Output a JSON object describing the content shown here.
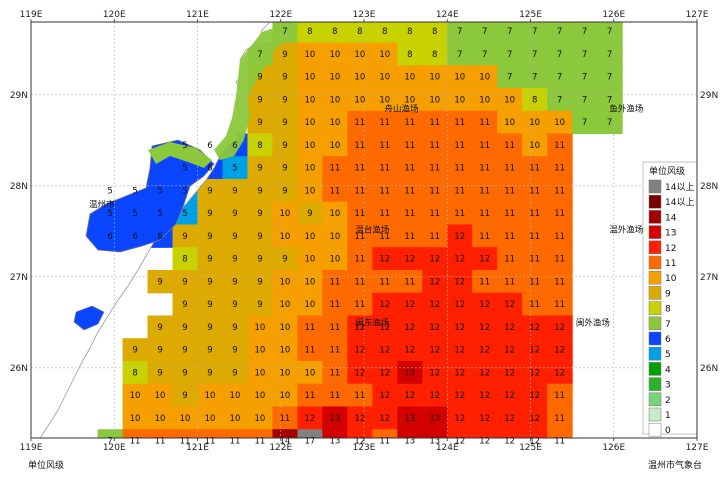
{
  "map": {
    "lon_ticks": [
      "119E",
      "120E",
      "121E",
      "122E",
      "123E",
      "124E",
      "125E",
      "126E",
      "127E"
    ],
    "lat_ticks": [
      "29N",
      "28N",
      "27N",
      "26N"
    ],
    "city": "温州市",
    "fishing_grounds": [
      {
        "name": "舟山渔场",
        "lon": 123.45,
        "lat": 28.85
      },
      {
        "name": "鱼外渔场",
        "lon": 126.15,
        "lat": 28.85
      },
      {
        "name": "温台渔场",
        "lon": 123.1,
        "lat": 27.52
      },
      {
        "name": "温外渔场",
        "lon": 126.15,
        "lat": 27.52
      },
      {
        "name": "闽东渔场",
        "lon": 123.1,
        "lat": 26.5
      },
      {
        "name": "闽外渔场",
        "lon": 125.75,
        "lat": 26.5
      }
    ],
    "wind_grid": {
      "lon_start": 119.65,
      "lon_step": 0.3,
      "lat_start": 29.7,
      "lat_step": -0.25,
      "rows": [
        [
          null,
          null,
          null,
          null,
          null,
          null,
          null,
          null,
          7,
          8,
          8,
          8,
          8,
          8,
          8,
          7,
          7,
          7,
          7,
          7,
          7,
          7
        ],
        [
          null,
          null,
          null,
          null,
          null,
          null,
          null,
          7,
          9,
          10,
          10,
          10,
          10,
          8,
          8,
          7,
          7,
          7,
          7,
          7,
          7,
          7
        ],
        [
          null,
          null,
          null,
          null,
          null,
          null,
          null,
          9,
          9,
          10,
          10,
          10,
          10,
          10,
          10,
          10,
          10,
          7,
          7,
          7,
          7,
          7
        ],
        [
          null,
          null,
          null,
          null,
          null,
          null,
          null,
          9,
          9,
          10,
          10,
          10,
          10,
          10,
          10,
          10,
          10,
          10,
          8,
          7,
          7,
          7
        ],
        [
          null,
          null,
          null,
          null,
          null,
          null,
          null,
          9,
          9,
          10,
          10,
          11,
          11,
          11,
          11,
          11,
          11,
          10,
          10,
          10,
          7,
          7
        ],
        [
          null,
          null,
          null,
          null,
          5,
          6,
          6,
          8,
          9,
          10,
          10,
          11,
          11,
          11,
          11,
          11,
          11,
          11,
          10,
          11,
          null,
          null
        ],
        [
          null,
          null,
          null,
          null,
          5,
          6,
          5,
          9,
          9,
          10,
          11,
          11,
          11,
          11,
          11,
          11,
          11,
          11,
          11,
          11,
          null,
          null
        ],
        [
          null,
          5,
          5,
          5,
          5,
          9,
          9,
          9,
          9,
          10,
          11,
          11,
          11,
          11,
          11,
          11,
          11,
          11,
          11,
          11,
          null,
          null
        ],
        [
          null,
          5,
          5,
          5,
          5,
          9,
          9,
          9,
          10,
          9,
          10,
          11,
          11,
          11,
          11,
          11,
          11,
          11,
          11,
          11,
          null,
          null
        ],
        [
          null,
          6,
          6,
          6,
          9,
          9,
          9,
          9,
          10,
          10,
          10,
          11,
          11,
          11,
          11,
          12,
          11,
          11,
          11,
          11,
          null,
          null
        ],
        [
          null,
          null,
          null,
          null,
          8,
          9,
          9,
          9,
          9,
          10,
          10,
          11,
          12,
          12,
          12,
          12,
          12,
          11,
          11,
          11,
          null,
          null
        ],
        [
          null,
          null,
          null,
          9,
          9,
          9,
          9,
          9,
          10,
          10,
          11,
          11,
          11,
          11,
          12,
          12,
          11,
          11,
          11,
          11,
          null,
          null
        ],
        [
          null,
          null,
          null,
          null,
          9,
          9,
          9,
          9,
          10,
          10,
          11,
          11,
          12,
          12,
          12,
          12,
          12,
          12,
          11,
          11,
          null,
          null
        ],
        [
          null,
          null,
          null,
          9,
          9,
          9,
          9,
          10,
          10,
          11,
          11,
          12,
          12,
          12,
          12,
          12,
          12,
          12,
          12,
          12,
          null,
          null
        ],
        [
          null,
          null,
          9,
          9,
          9,
          9,
          9,
          10,
          10,
          11,
          11,
          12,
          12,
          12,
          12,
          12,
          12,
          12,
          12,
          12,
          null,
          null
        ],
        [
          null,
          null,
          8,
          9,
          9,
          9,
          9,
          10,
          10,
          10,
          11,
          12,
          12,
          13,
          12,
          12,
          12,
          12,
          12,
          12,
          null,
          null
        ],
        [
          null,
          null,
          10,
          10,
          9,
          10,
          10,
          10,
          10,
          11,
          11,
          11,
          12,
          12,
          12,
          12,
          12,
          12,
          12,
          11,
          null,
          null
        ],
        [
          null,
          null,
          10,
          10,
          10,
          10,
          10,
          10,
          11,
          12,
          13,
          12,
          12,
          13,
          13,
          12,
          12,
          12,
          12,
          11,
          null,
          null
        ],
        [
          null,
          7,
          11,
          11,
          11,
          11,
          11,
          11,
          14,
          17,
          13,
          12,
          11,
          13,
          13,
          12,
          12,
          12,
          12,
          11,
          null,
          null
        ]
      ]
    }
  },
  "legend": {
    "title": "单位风级",
    "items": [
      {
        "label": "14以上",
        "color": "#808080"
      },
      {
        "label": "14以上",
        "color": "#7a0000"
      },
      {
        "label": "14",
        "color": "#a30000"
      },
      {
        "label": "13",
        "color": "#d40000"
      },
      {
        "label": "12",
        "color": "#ff2000"
      },
      {
        "label": "11",
        "color": "#ff6a00"
      },
      {
        "label": "10",
        "color": "#f5a000"
      },
      {
        "label": "9",
        "color": "#dcaa00"
      },
      {
        "label": "8",
        "color": "#c8d200"
      },
      {
        "label": "7",
        "color": "#8cc83c"
      },
      {
        "label": "6",
        "color": "#0a46ff"
      },
      {
        "label": "5",
        "color": "#00a0e6"
      },
      {
        "label": "4",
        "color": "#00a000"
      },
      {
        "label": "3",
        "color": "#28b428"
      },
      {
        "label": "2",
        "color": "#78d278"
      },
      {
        "label": "1",
        "color": "#c8ebc8"
      },
      {
        "label": "0",
        "color": "#ffffff"
      }
    ]
  },
  "footer": {
    "unit": "单位风级",
    "source": "温州市气象台"
  }
}
